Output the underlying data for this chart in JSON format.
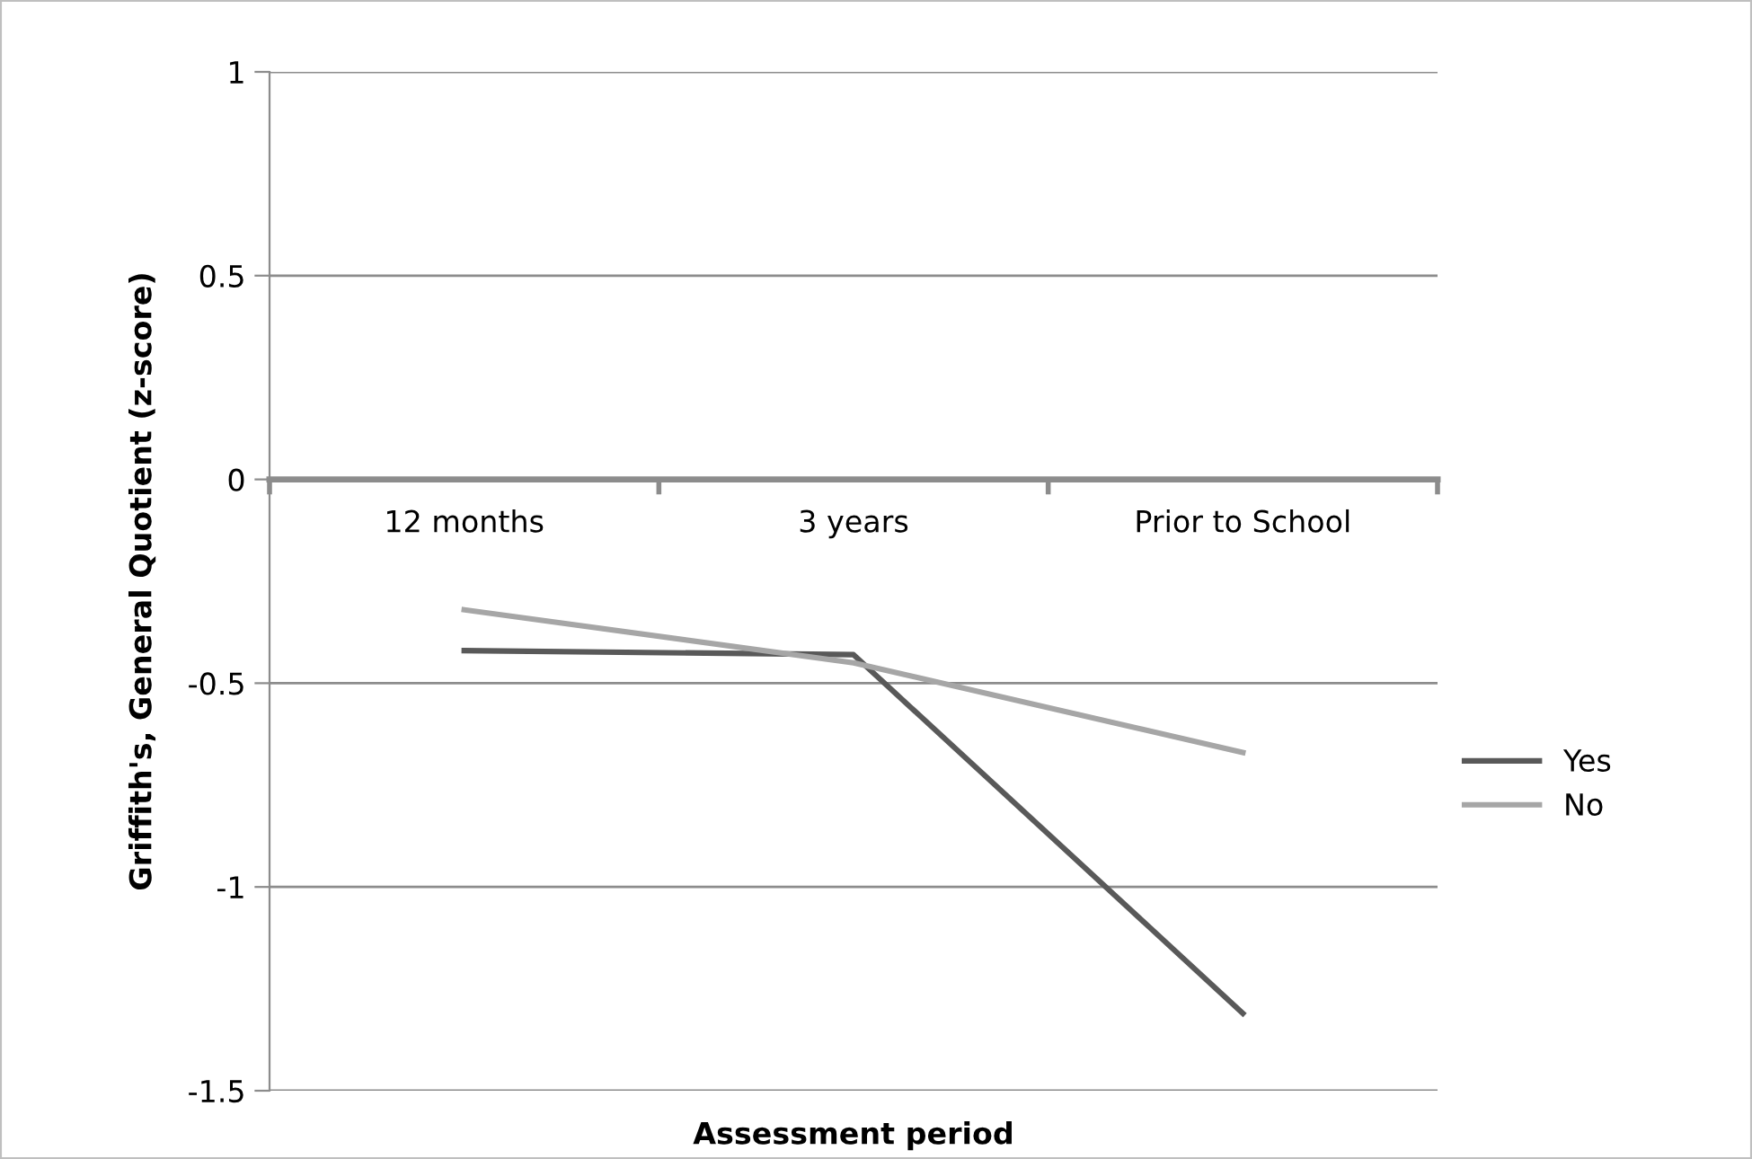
{
  "chart_data": {
    "type": "line",
    "xlabel": "Assessment period",
    "ylabel": "Griffith's, General Quotient (z-score)",
    "categories": [
      "12 months",
      "3 years",
      "Prior to School"
    ],
    "series": [
      {
        "name": "Yes",
        "color": "#595959",
        "values": [
          -0.42,
          -0.43,
          -1.31
        ]
      },
      {
        "name": "No",
        "color": "#a6a6a6",
        "values": [
          -0.32,
          -0.45,
          -0.67
        ]
      }
    ],
    "ylim": [
      -1.5,
      1
    ],
    "yticks": [
      {
        "value": -1.5,
        "label": "-1.5"
      },
      {
        "value": -1,
        "label": "-1"
      },
      {
        "value": -0.5,
        "label": "-0.5"
      },
      0,
      0.5,
      1
    ],
    "grid": "y",
    "legend": "right",
    "marker": "none",
    "line_style": "solid"
  }
}
